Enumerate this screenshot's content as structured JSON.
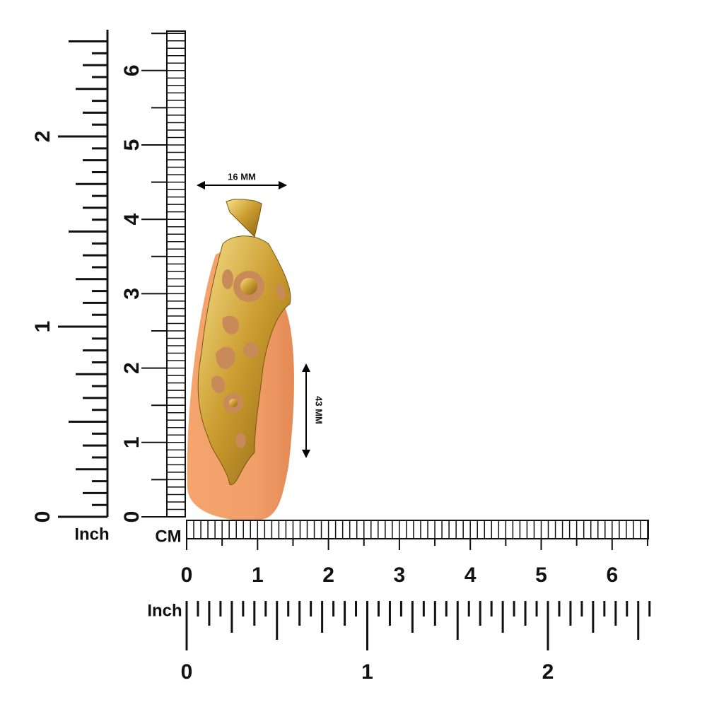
{
  "dimensions": {
    "width_label": "16 MM",
    "height_label": "43 MM"
  },
  "rulers": {
    "left_inch": {
      "unit": "Inch",
      "labels": [
        "0",
        "1",
        "2"
      ]
    },
    "left_cm": {
      "labels": [
        "0",
        "1",
        "2",
        "3",
        "4",
        "5",
        "6"
      ]
    },
    "bottom_cm": {
      "unit": "CM",
      "labels": [
        "0",
        "1",
        "2",
        "3",
        "4",
        "5",
        "6"
      ]
    },
    "bottom_inch": {
      "unit": "Inch",
      "labels": [
        "0",
        "1",
        "2"
      ]
    }
  }
}
